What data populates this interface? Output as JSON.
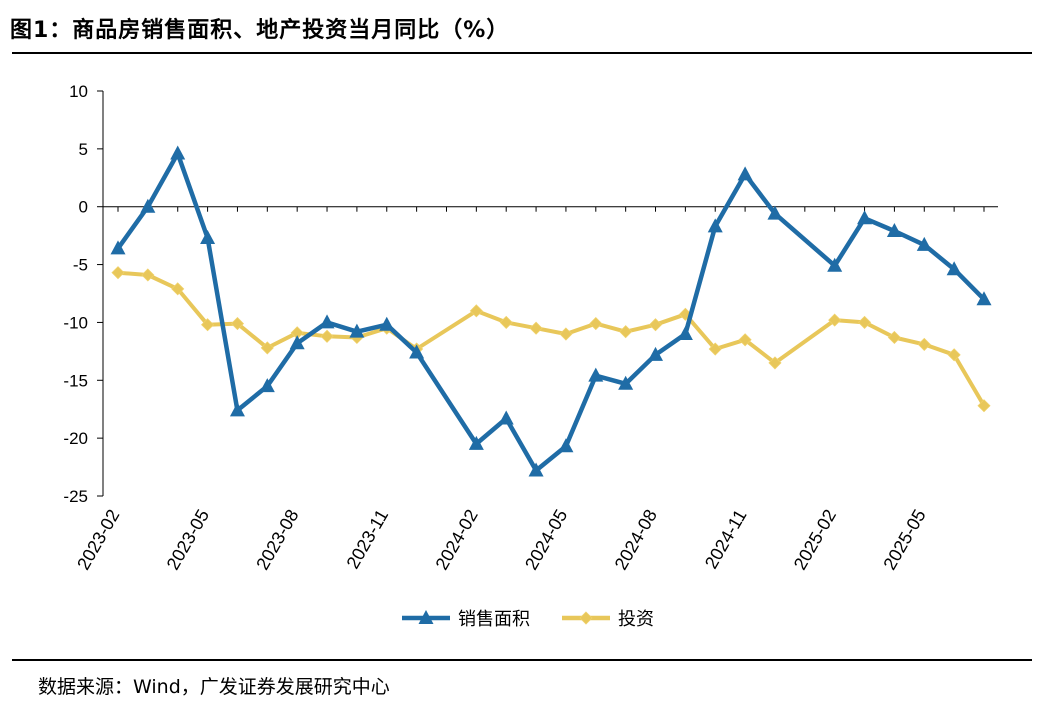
{
  "header": {
    "title": "图1：商品房销售面积、地产投资当月同比（%）"
  },
  "footer": {
    "source": "数据来源：Wind，广发证券发展研究中心"
  },
  "colors": {
    "sales": "#1f6ca6",
    "investment": "#e8c75a",
    "axis": "#000000"
  },
  "chart_data": {
    "type": "line",
    "ylim": [
      -25,
      10
    ],
    "yticks": [
      10,
      5,
      0,
      -5,
      -10,
      -15,
      -20,
      -25
    ],
    "x": [
      "2023-02",
      "2023-03",
      "2023-04",
      "2023-05",
      "2023-06",
      "2023-07",
      "2023-08",
      "2023-09",
      "2023-10",
      "2023-11",
      "2023-12",
      "2024-01",
      "2024-02",
      "2024-03",
      "2024-04",
      "2024-05",
      "2024-06",
      "2024-07",
      "2024-08",
      "2024-09",
      "2024-10",
      "2024-11",
      "2024-12",
      "2025-01",
      "2025-02",
      "2025-03",
      "2025-04",
      "2025-05",
      "2025-06",
      "2025-07"
    ],
    "xtick_labels": [
      "2023-02",
      "2023-05",
      "2023-08",
      "2023-11",
      "2024-02",
      "2024-05",
      "2024-08",
      "2024-11",
      "2025-02",
      "2025-05"
    ],
    "xtick_indices": [
      0,
      3,
      6,
      9,
      12,
      15,
      18,
      21,
      24,
      27
    ],
    "series": [
      {
        "name": "销售面积",
        "marker": "triangle",
        "values": [
          -3.6,
          0.0,
          4.6,
          -2.7,
          -17.6,
          -15.5,
          -11.8,
          -10.0,
          -10.8,
          -10.2,
          -12.6,
          null,
          -20.5,
          -18.3,
          -22.8,
          -20.7,
          -14.6,
          -15.3,
          -12.8,
          -11.0,
          -1.7,
          2.8,
          -0.6,
          null,
          -5.1,
          -1.0,
          -2.1,
          -3.3,
          -5.4,
          -8.0
        ]
      },
      {
        "name": "投资",
        "marker": "diamond",
        "values": [
          -5.7,
          -5.9,
          -7.1,
          -10.2,
          -10.1,
          -12.2,
          -10.9,
          -11.2,
          -11.3,
          -10.5,
          -12.3,
          null,
          -9.0,
          -10.0,
          -10.5,
          -11.0,
          -10.1,
          -10.8,
          -10.2,
          -9.3,
          -12.3,
          -11.5,
          -13.5,
          null,
          -9.8,
          -10.0,
          -11.3,
          -11.9,
          -12.8,
          -17.2
        ]
      }
    ],
    "legend": {
      "position": "bottom",
      "items": [
        "销售面积",
        "投资"
      ]
    },
    "grid": false
  }
}
